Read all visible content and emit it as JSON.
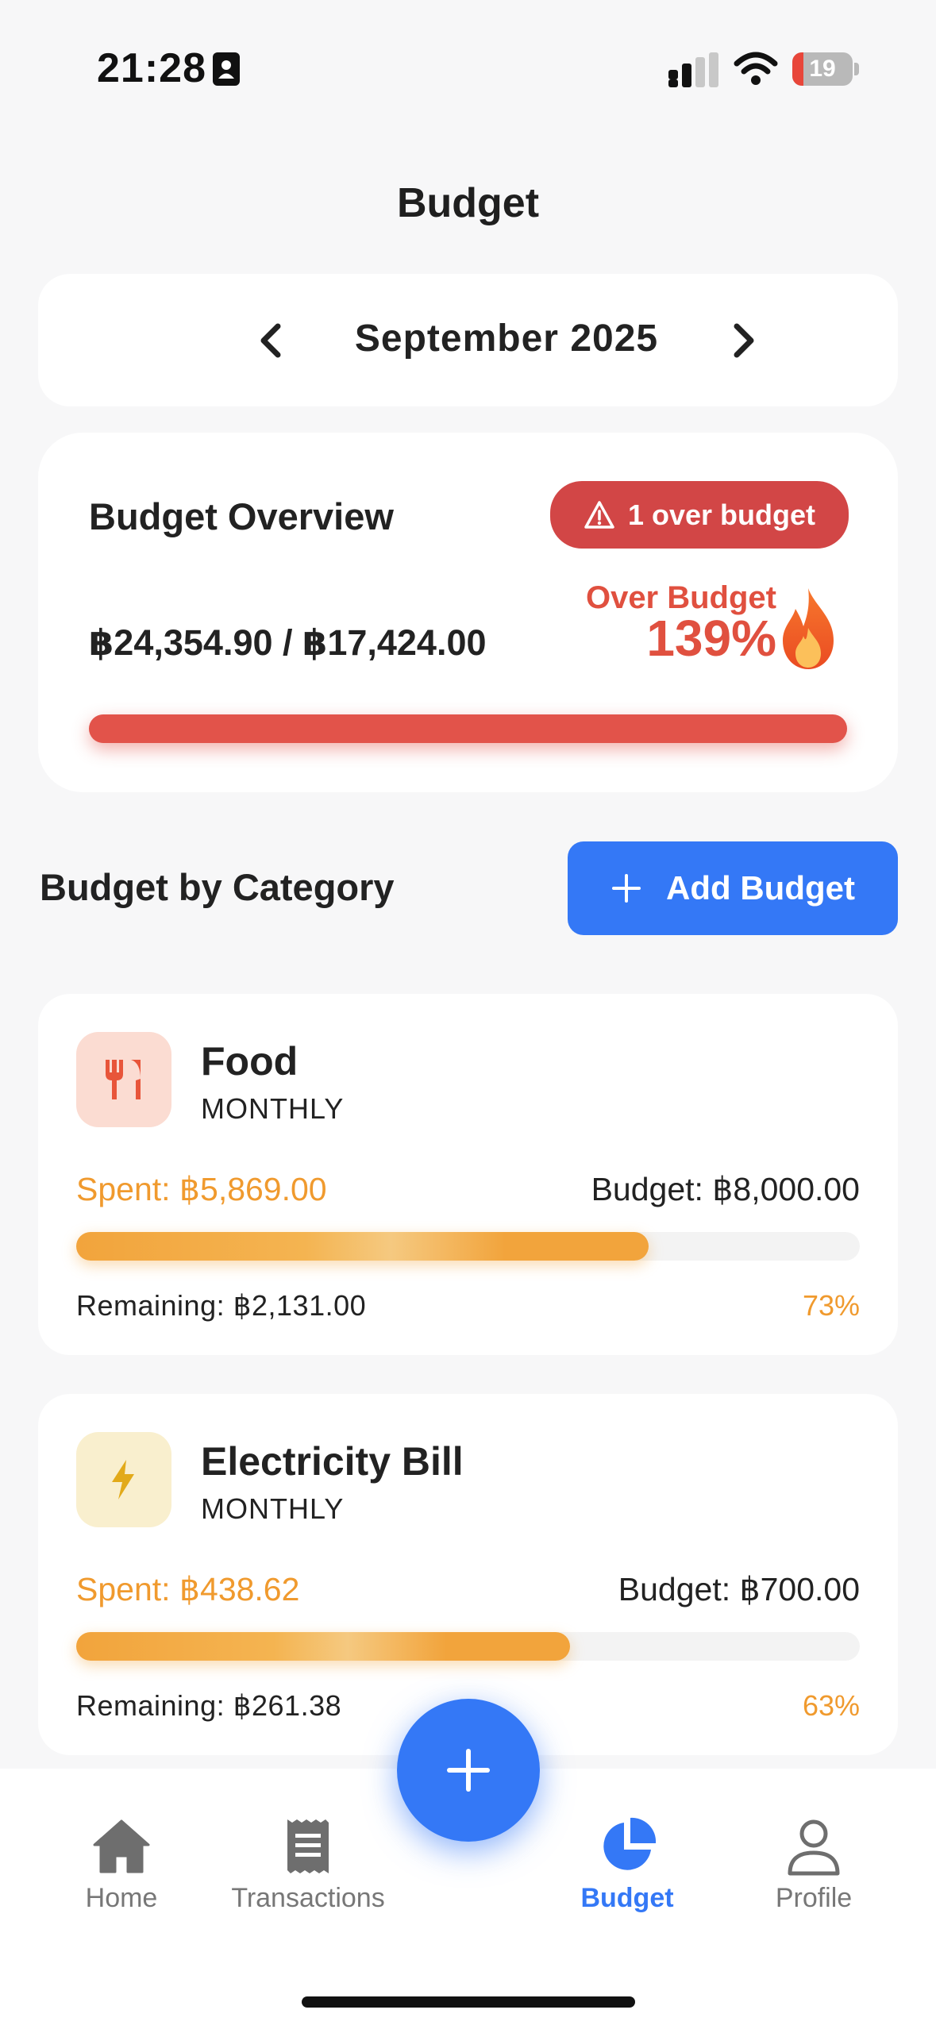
{
  "status_bar": {
    "time": "21:28",
    "battery_level": "19",
    "battery_fraction": 0.19,
    "icons": [
      "contact-card-icon",
      "signal-icon",
      "wifi-icon",
      "battery-icon"
    ]
  },
  "header": {
    "title": "Budget"
  },
  "month_selector": {
    "label": "September 2025",
    "prev_icon": "chevron-left-icon",
    "next_icon": "chevron-right-icon"
  },
  "overview": {
    "title": "Budget Overview",
    "badge": "1 over budget",
    "badge_icon": "warning-triangle-icon",
    "amounts": "฿24,354.90 / ฿17,424.00",
    "status_label": "Over Budget",
    "percent": "139%",
    "progress_fraction": 1.0,
    "status_icon": "fire-icon",
    "colors": {
      "danger": "#e0503f",
      "badge": "#d24646"
    }
  },
  "categories_section": {
    "title": "Budget by Category",
    "add_button_label": "Add Budget",
    "add_button_icon": "plus-icon",
    "items": [
      {
        "name": "Food",
        "period": "MONTHLY",
        "icon": "fork-knife-icon",
        "icon_color": "#e8553a",
        "icon_bg": "#fbdcd2",
        "spent": "Spent: ฿5,869.00",
        "budget": "Budget: ฿8,000.00",
        "remaining": "Remaining: ฿2,131.00",
        "percent": "73%",
        "progress_fraction": 0.73
      },
      {
        "name": "Electricity Bill",
        "period": "MONTHLY",
        "icon": "lightning-bolt-icon",
        "icon_color": "#e2aa1a",
        "icon_bg": "#f9efce",
        "spent": "Spent: ฿438.62",
        "budget": "Budget: ฿700.00",
        "remaining": "Remaining: ฿261.38",
        "percent": "63%",
        "progress_fraction": 0.63
      }
    ]
  },
  "bottom_nav": {
    "items": [
      {
        "label": "Home",
        "icon": "home-icon",
        "active": false
      },
      {
        "label": "Transactions",
        "icon": "receipt-icon",
        "active": false
      },
      {
        "label": "Budget",
        "icon": "pie-chart-icon",
        "active": true
      },
      {
        "label": "Profile",
        "icon": "person-icon",
        "active": false
      }
    ],
    "fab_icon": "plus-icon",
    "accent_color": "#3478f6"
  }
}
